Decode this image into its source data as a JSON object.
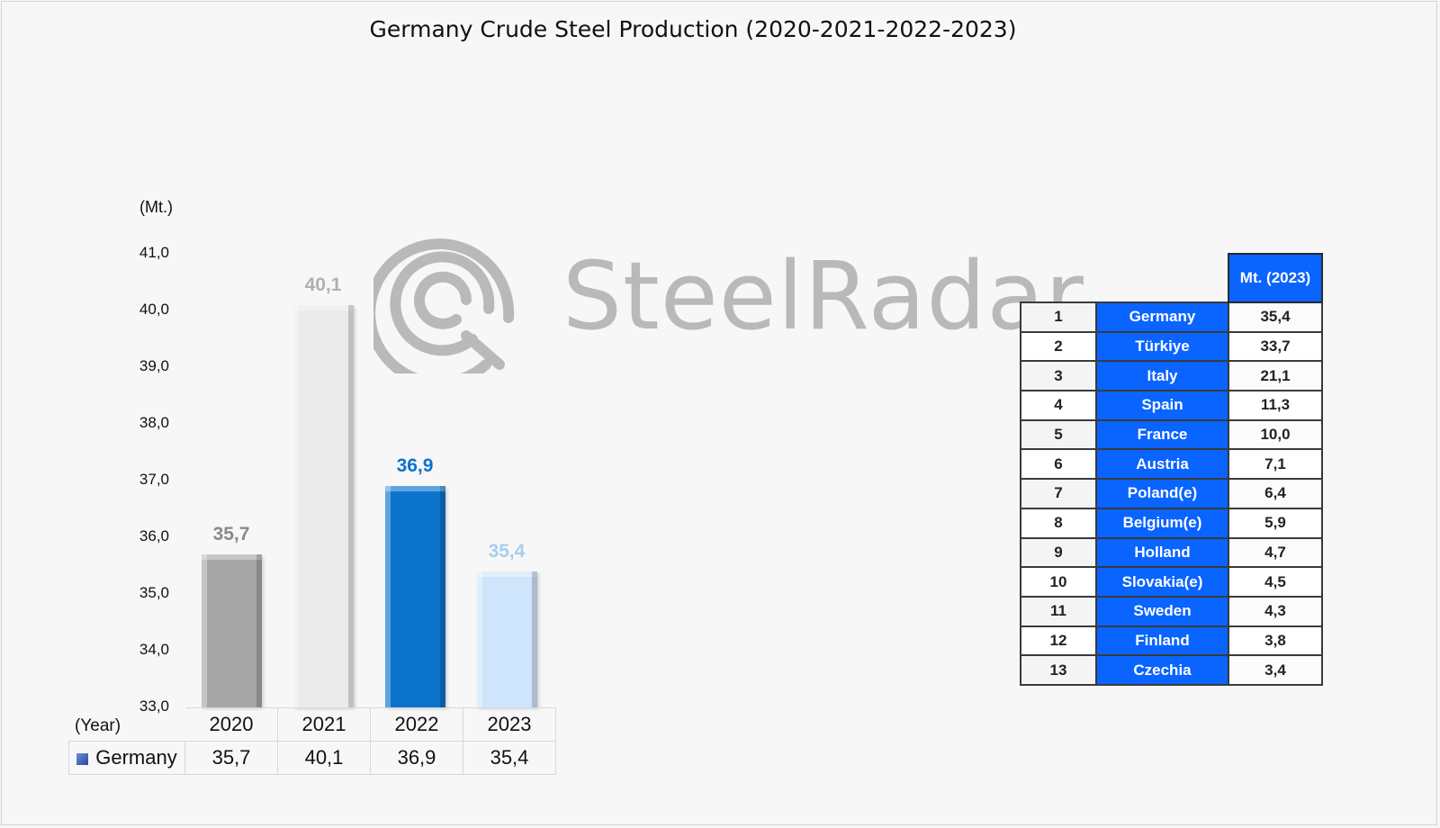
{
  "title": "Germany Crude Steel Production (2020-2021-2022-2023)",
  "watermark": "SteelRadar",
  "chart_data": {
    "type": "bar",
    "categories": [
      "2020",
      "2021",
      "2022",
      "2023"
    ],
    "series": [
      {
        "name": "Germany",
        "values": [
          35.7,
          40.1,
          36.9,
          35.4
        ]
      }
    ],
    "value_labels": [
      "35,7",
      "40,1",
      "36,9",
      "35,4"
    ],
    "bar_colors": [
      "#a6a6a6",
      "#ebebeb",
      "#0b73cc",
      "#cfe5fb"
    ],
    "label_colors": [
      "#8a8a8a",
      "#b0b0b0",
      "#0b73cc",
      "#a9cdf0"
    ],
    "ylabel": "(Mt.)",
    "xlabel": "(Year)",
    "ylim": [
      33,
      41
    ],
    "yticks": [
      "41,0",
      "40,0",
      "39,0",
      "38,0",
      "37,0",
      "36,0",
      "35,0",
      "34,0",
      "33,0"
    ],
    "grid": false
  },
  "data_table": {
    "row_label": "Germany",
    "values": [
      "35,7",
      "40,1",
      "36,9",
      "35,4"
    ]
  },
  "ranking": {
    "header": "Mt. (2023)",
    "rows": [
      {
        "rank": "1",
        "country": "Germany",
        "value": "35,4"
      },
      {
        "rank": "2",
        "country": "Türkiye",
        "value": "33,7"
      },
      {
        "rank": "3",
        "country": "Italy",
        "value": "21,1"
      },
      {
        "rank": "4",
        "country": "Spain",
        "value": "11,3"
      },
      {
        "rank": "5",
        "country": "France",
        "value": "10,0"
      },
      {
        "rank": "6",
        "country": "Austria",
        "value": "7,1"
      },
      {
        "rank": "7",
        "country": "Poland(e)",
        "value": "6,4"
      },
      {
        "rank": "8",
        "country": "Belgium(e)",
        "value": "5,9"
      },
      {
        "rank": "9",
        "country": "Holland",
        "value": "4,7"
      },
      {
        "rank": "10",
        "country": "Slovakia(e)",
        "value": "4,5"
      },
      {
        "rank": "11",
        "country": "Sweden",
        "value": "4,3"
      },
      {
        "rank": "12",
        "country": "Finland",
        "value": "3,8"
      },
      {
        "rank": "13",
        "country": "Czechia",
        "value": "3,4"
      }
    ]
  }
}
